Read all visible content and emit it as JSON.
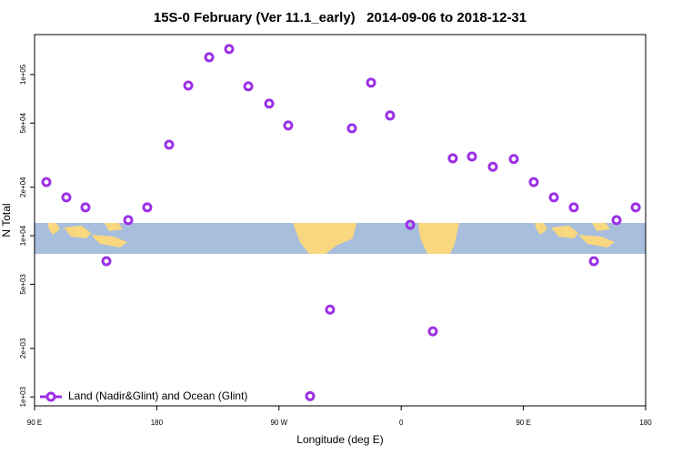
{
  "chart_data": {
    "type": "scatter",
    "title": "15S-0 February (Ver 11.1_early)   2014-09-06 to 2018-12-31",
    "x_label": "Longitude (deg E)",
    "y_label": "N Total",
    "ylog": true,
    "legend": "bottom-left",
    "xlim": [
      90,
      540
    ],
    "xticks": [
      {
        "value": 90,
        "label": "90 E"
      },
      180,
      {
        "value": 270,
        "label": "90 W"
      },
      {
        "value": 360,
        "label": "0"
      },
      {
        "value": 450,
        "label": "90 E"
      },
      {
        "value": 540,
        "label": "180"
      }
    ],
    "ylim": [
      880,
      177000
    ],
    "yticks": [
      {
        "value": 1000,
        "label": "1e+03"
      },
      {
        "value": 2000,
        "label": "2e+03"
      },
      {
        "value": 5000,
        "label": "5e+03"
      },
      {
        "value": 10000,
        "label": "1e+04"
      },
      {
        "value": 20000,
        "label": "2e+04"
      },
      {
        "value": 50000,
        "label": "5e+04"
      },
      {
        "value": 100000,
        "label": "1e+05"
      }
    ],
    "series": [
      {
        "name": "Land (Nadir&Glint) and Ocean (Glint)",
        "color": "#9b30e6",
        "x": [
          98.7,
          113.4,
          127.5,
          142.9,
          159,
          173,
          189.1,
          203.2,
          218.6,
          233.3,
          247.4,
          262.8,
          276.8,
          292.9,
          307.6,
          323.7,
          337.8,
          351.8,
          366.6,
          383.3,
          398,
          412.1,
          427.5,
          442.9,
          457.6,
          472.4,
          487.1,
          501.9,
          518.6,
          532.7
        ],
        "values": [
          21500,
          17300,
          15000,
          6950,
          12500,
          15000,
          36700,
          85500,
          128000,
          144000,
          84500,
          66000,
          48300,
          1010,
          3480,
          46400,
          89000,
          55700,
          11700,
          2550,
          30200,
          31000,
          26800,
          29900,
          21500,
          17300,
          15000,
          6950,
          12500,
          15000
        ]
      }
    ]
  }
}
